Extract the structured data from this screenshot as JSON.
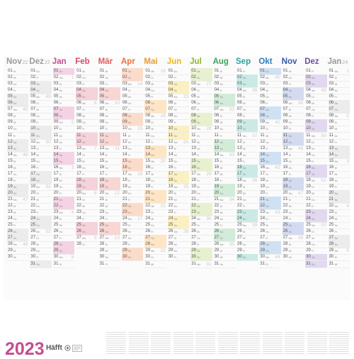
{
  "title": "2023",
  "brand": "Häfft",
  "months": [
    {
      "name": "Nov",
      "year": "22",
      "color": "#9a9a9a",
      "shade": "#ececec",
      "days": 30,
      "startDow": 1,
      "startKw": 44
    },
    {
      "name": "Dez",
      "year": "22",
      "color": "#9a9a9a",
      "shade": "#ececec",
      "days": 31,
      "startDow": 3,
      "startKw": 48
    },
    {
      "name": "Jan",
      "year": "",
      "color": "#c44d8f",
      "shade": "#f3d3e4",
      "days": 31,
      "startDow": 6,
      "startKw": 52
    },
    {
      "name": "Feb",
      "year": "",
      "color": "#d94a6b",
      "shade": "#f6d2da",
      "days": 28,
      "startDow": 2,
      "startKw": 5
    },
    {
      "name": "Mär",
      "year": "",
      "color": "#e35b5b",
      "shade": "#f8d6d3",
      "days": 31,
      "startDow": 2,
      "startKw": 9
    },
    {
      "name": "Apr",
      "year": "",
      "color": "#ec6e3a",
      "shade": "#fbdccb",
      "days": 30,
      "startDow": 5,
      "startKw": 13
    },
    {
      "name": "Mai",
      "year": "",
      "color": "#f19a2b",
      "shade": "#fde5c6",
      "days": 31,
      "startDow": 0,
      "startKw": 18
    },
    {
      "name": "Jun",
      "year": "",
      "color": "#e9b718",
      "shade": "#fbf0c2",
      "days": 30,
      "startDow": 3,
      "startKw": 22
    },
    {
      "name": "Jul",
      "year": "",
      "color": "#8cb52f",
      "shade": "#e7f1cf",
      "days": 31,
      "startDow": 5,
      "startKw": 26
    },
    {
      "name": "Aug",
      "year": "",
      "color": "#3aa35a",
      "shade": "#d3ecd9",
      "days": 31,
      "startDow": 1,
      "startKw": 31
    },
    {
      "name": "Sep",
      "year": "",
      "color": "#2ba49a",
      "shade": "#cbeae6",
      "days": 30,
      "startDow": 4,
      "startKw": 35
    },
    {
      "name": "Okt",
      "year": "",
      "color": "#2a7fbf",
      "shade": "#cfe1f2",
      "days": 31,
      "startDow": 6,
      "startKw": 39
    },
    {
      "name": "Nov",
      "year": "",
      "color": "#3a56a8",
      "shade": "#d4dbf0",
      "days": 30,
      "startDow": 2,
      "startKw": 44
    },
    {
      "name": "Dez",
      "year": "",
      "color": "#6e4ea3",
      "shade": "#e2d8f0",
      "days": 31,
      "startDow": 4,
      "startKw": 48
    },
    {
      "name": "Jan",
      "year": "24",
      "color": "#9a9a9a",
      "shade": "#ececec",
      "days": 31,
      "startDow": 0,
      "startKw": 1
    }
  ],
  "weekdays": [
    "Mo",
    "Di",
    "Mi",
    "Do",
    "Fr",
    "Sa",
    "So"
  ],
  "colors": {
    "title": "#c44d8f",
    "weekend_shade_default": "#ececec",
    "line": "#ececec"
  }
}
